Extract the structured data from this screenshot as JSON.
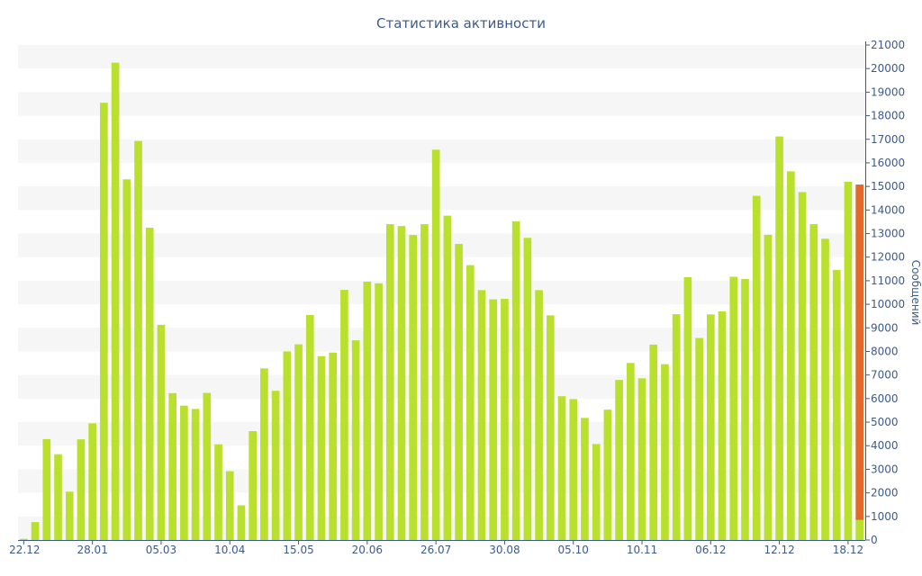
{
  "chart_data": {
    "type": "bar",
    "title": "Статистика активности",
    "ylabel": "Сообщений",
    "ylim": [
      0,
      21000
    ],
    "ytick_step": 1000,
    "grid": "alternating horizontal bands",
    "x_tick_labels": [
      {
        "index": 0,
        "label": "22.12"
      },
      {
        "index": 6,
        "label": "28.01"
      },
      {
        "index": 12,
        "label": "05.03"
      },
      {
        "index": 18,
        "label": "10.04"
      },
      {
        "index": 24,
        "label": "15.05"
      },
      {
        "index": 30,
        "label": "20.06"
      },
      {
        "index": 36,
        "label": "26.07"
      },
      {
        "index": 42,
        "label": "30.08"
      },
      {
        "index": 48,
        "label": "05.10"
      },
      {
        "index": 54,
        "label": "10.11"
      },
      {
        "index": 60,
        "label": "06.12"
      },
      {
        "index": 66,
        "label": "12.12"
      },
      {
        "index": 72,
        "label": "18.12"
      }
    ],
    "series": [
      {
        "color": "#b8e02c",
        "values": [
          50,
          760,
          4280,
          3640,
          2050,
          4270,
          4950,
          18550,
          20250,
          15300,
          16930,
          13250,
          9130,
          6230,
          5700,
          5560,
          6240,
          4060,
          2920,
          1470,
          4620,
          7280,
          6330,
          8000,
          8300,
          9550,
          7800,
          7950,
          10610,
          8470,
          10960,
          10890,
          13400,
          13320,
          12940,
          13400,
          16560,
          13760,
          12560,
          11660,
          10600,
          10210,
          10230,
          13520,
          12820,
          10600,
          9530,
          6100,
          5980,
          5180,
          4070,
          5530,
          6790,
          7510,
          6860,
          8290,
          7460,
          9580,
          11150,
          8570,
          9570,
          9700,
          11170,
          11070,
          14600,
          12950,
          17120,
          15640,
          14760,
          13400,
          12780,
          11460,
          15200,
          850
        ]
      },
      {
        "color": "#e06a2c",
        "values": [
          0,
          0,
          0,
          0,
          0,
          0,
          0,
          0,
          0,
          0,
          0,
          0,
          0,
          0,
          0,
          0,
          0,
          0,
          0,
          0,
          0,
          0,
          0,
          0,
          0,
          0,
          0,
          0,
          0,
          0,
          0,
          0,
          0,
          0,
          0,
          0,
          0,
          0,
          0,
          0,
          0,
          0,
          0,
          0,
          0,
          0,
          0,
          0,
          0,
          0,
          0,
          0,
          0,
          0,
          0,
          0,
          0,
          0,
          0,
          0,
          0,
          0,
          0,
          0,
          0,
          0,
          0,
          0,
          0,
          0,
          0,
          0,
          0,
          14230
        ]
      }
    ],
    "colors": {
      "title": "#3d5a8a",
      "axis": "#3d5a8a",
      "band": "#f6f6f6"
    }
  }
}
